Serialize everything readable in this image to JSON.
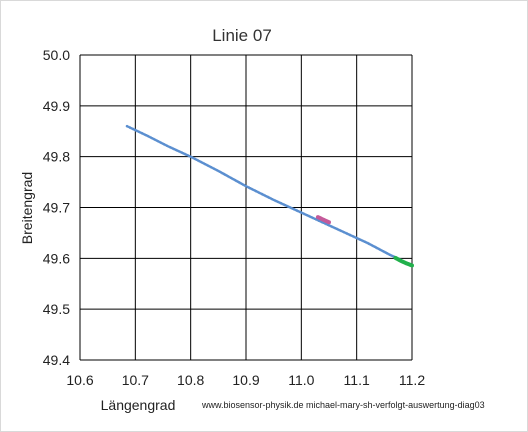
{
  "chart_data": {
    "type": "scatter",
    "title": "Linie 07",
    "xlabel": "Längengrad",
    "ylabel": "Breitengrad",
    "credit": "www.biosensor-physik.de michael-mary-sh-verfolgt-auswertung-diag03",
    "xlim": [
      10.6,
      11.2
    ],
    "ylim": [
      49.4,
      50.0
    ],
    "xticks": [
      "10.6",
      "10.7",
      "10.8",
      "10.9",
      "11.0",
      "11.1",
      "11.2"
    ],
    "yticks": [
      "49.4",
      "49.5",
      "49.6",
      "49.7",
      "49.8",
      "49.9",
      "50.0"
    ],
    "grid": true,
    "series": [
      {
        "color": "#5b8fd0",
        "x": [
          10.685,
          10.72,
          10.76,
          10.8,
          10.85,
          10.9,
          10.95,
          11.0,
          11.04,
          11.08,
          11.12,
          11.16,
          11.18
        ],
        "y": [
          49.86,
          49.842,
          49.82,
          49.8,
          49.772,
          49.742,
          49.715,
          49.69,
          49.67,
          49.65,
          49.63,
          49.607,
          49.597
        ]
      },
      {
        "color": "#c55a9a",
        "x": [
          11.03,
          11.04,
          11.05
        ],
        "y": [
          49.681,
          49.676,
          49.671
        ]
      },
      {
        "color": "#22b14c",
        "x": [
          11.17,
          11.18,
          11.19,
          11.2
        ],
        "y": [
          49.601,
          49.595,
          49.59,
          49.586
        ]
      }
    ]
  }
}
